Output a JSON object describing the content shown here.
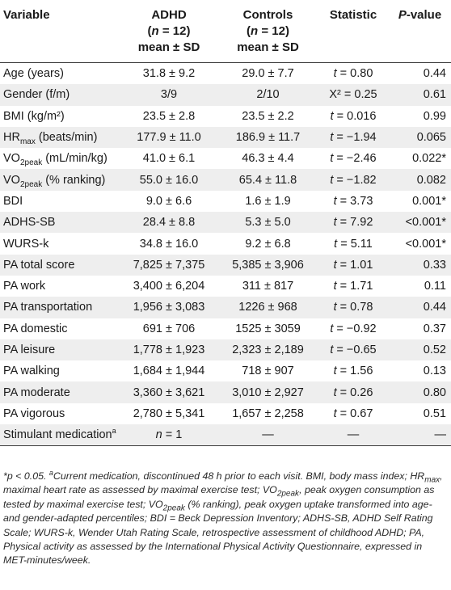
{
  "header": {
    "variable": "Variable",
    "adhd_line1": "ADHD",
    "adhd_line2": "(n = 12)",
    "adhd_line3": "mean ± SD",
    "controls_line1": "Controls",
    "controls_line2": "(n = 12)",
    "controls_line3": "mean ± SD",
    "statistic": "Statistic",
    "pvalue": "P-value"
  },
  "rows": [
    {
      "variable": "Age (years)",
      "adhd": "31.8 ± 9.2",
      "controls": "29.0 ± 7.7",
      "statistic": "t = 0.80",
      "p": "0.44"
    },
    {
      "variable": "Gender (f/m)",
      "adhd": "3/9",
      "controls": "2/10",
      "statistic": "X² = 0.25",
      "p": "0.61"
    },
    {
      "variable": "BMI (kg/m²)",
      "adhd": "23.5 ± 2.8",
      "controls": "23.5 ± 2.2",
      "statistic": "t = 0.016",
      "p": "0.99"
    },
    {
      "variable": "HRmax (beats/min)",
      "adhd": "177.9 ± 11.0",
      "controls": "186.9 ± 11.7",
      "statistic": "t = −1.94",
      "p": "0.065"
    },
    {
      "variable": "VO2peak (mL/min/kg)",
      "adhd": "41.0 ± 6.1",
      "controls": "46.3 ± 4.4",
      "statistic": "t = −2.46",
      "p": "0.022*"
    },
    {
      "variable": "VO2peak (% ranking)",
      "adhd": "55.0 ± 16.0",
      "controls": "65.4 ± 11.8",
      "statistic": "t = −1.82",
      "p": "0.082"
    },
    {
      "variable": "BDI",
      "adhd": "9.0 ± 6.6",
      "controls": "1.6 ± 1.9",
      "statistic": "t = 3.73",
      "p": "0.001*"
    },
    {
      "variable": "ADHS-SB",
      "adhd": "28.4 ± 8.8",
      "controls": "5.3 ± 5.0",
      "statistic": "t = 7.92",
      "p": "<0.001*"
    },
    {
      "variable": "WURS-k",
      "adhd": "34.8 ± 16.0",
      "controls": "9.2 ± 6.8",
      "statistic": "t = 5.11",
      "p": "<0.001*"
    },
    {
      "variable": "PA total score",
      "adhd": "7,825 ± 7,375",
      "controls": "5,385 ± 3,906",
      "statistic": "t = 1.01",
      "p": "0.33"
    },
    {
      "variable": "PA work",
      "adhd": "3,400 ± 6,204",
      "controls": "311 ± 817",
      "statistic": "t = 1.71",
      "p": "0.11"
    },
    {
      "variable": "PA transportation",
      "adhd": "1,956 ± 3,083",
      "controls": "1226 ± 968",
      "statistic": "t = 0.78",
      "p": "0.44"
    },
    {
      "variable": "PA domestic",
      "adhd": "691 ± 706",
      "controls": "1525 ± 3059",
      "statistic": "t = −0.92",
      "p": "0.37"
    },
    {
      "variable": "PA leisure",
      "adhd": "1,778 ± 1,923",
      "controls": "2,323 ± 2,189",
      "statistic": "t = −0.65",
      "p": "0.52"
    },
    {
      "variable": "PA walking",
      "adhd": "1,684 ± 1,944",
      "controls": "718 ± 907",
      "statistic": "t = 1.56",
      "p": "0.13"
    },
    {
      "variable": "PA moderate",
      "adhd": "3,360 ± 3,621",
      "controls": "3,010 ± 2,927",
      "statistic": "t = 0.26",
      "p": "0.80"
    },
    {
      "variable": "PA vigorous",
      "adhd": "2,780 ± 5,341",
      "controls": "1,657 ± 2,258",
      "statistic": "t = 0.67",
      "p": "0.51"
    },
    {
      "variable": "Stimulant medication",
      "adhd": "n = 1",
      "controls": "—",
      "statistic": "—",
      "p": "—"
    }
  ],
  "footnote": "*p < 0.05. aCurrent medication, discontinued 48 h prior to each visit. BMI, body mass index; HRmax, maximal heart rate as assessed by maximal exercise test; VO2peak, peak oxygen consumption as tested by maximal exercise test; VO2peak (% ranking), peak oxygen uptake transformed into age- and gender-adapted percentiles; BDI = Beck Depression Inventory; ADHS-SB, ADHD Self Rating Scale; WURS-k, Wender Utah Rating Scale, retrospective assessment of childhood ADHD; PA, Physical activity as assessed by the International Physical Activity Questionnaire, expressed in MET-minutes/week."
}
